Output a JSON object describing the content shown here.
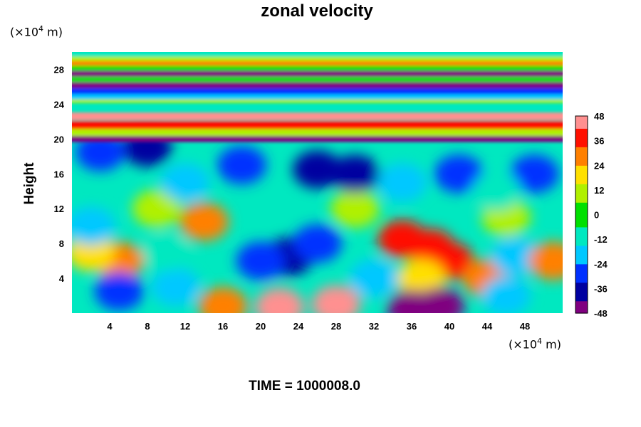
{
  "chart_data": {
    "type": "heatmap",
    "title": "zonal velocity",
    "ylabel": "Height",
    "x_unit_prefix": "(×10",
    "x_unit_exp": "4",
    "x_unit_suffix": " m)",
    "y_unit_prefix": "(×10",
    "y_unit_exp": "4",
    "y_unit_suffix": " m)",
    "footer": "TIME = 1000008.0",
    "xlim": [
      0,
      52
    ],
    "ylim": [
      0,
      30
    ],
    "x_ticks": [
      4,
      8,
      12,
      16,
      20,
      24,
      28,
      32,
      36,
      40,
      44,
      48
    ],
    "y_ticks": [
      4,
      8,
      12,
      16,
      20,
      24,
      28
    ],
    "colorbar": {
      "range": [
        -48,
        48
      ],
      "ticks": [
        48,
        36,
        24,
        12,
        0,
        -12,
        -24,
        -36,
        -48
      ]
    },
    "colormap": [
      "#800080",
      "#0000a0",
      "#0030ff",
      "#00c8ff",
      "#00e8c0",
      "#00e000",
      "#b0f000",
      "#ffe000",
      "#ff8000",
      "#ff1000",
      "#ff9090"
    ],
    "features": [
      {
        "x": 23,
        "y": 6.5,
        "value": -40
      },
      {
        "x": 20,
        "y": 6,
        "value": -30
      },
      {
        "x": 26,
        "y": 8,
        "value": -32
      },
      {
        "x": 38,
        "y": 7.5,
        "value": 42
      },
      {
        "x": 35,
        "y": 8.5,
        "value": 38
      },
      {
        "x": 40,
        "y": 6,
        "value": 36
      },
      {
        "x": 37,
        "y": 4,
        "value": 20
      },
      {
        "x": 36,
        "y": 0.5,
        "value": -48
      },
      {
        "x": 39,
        "y": 0.8,
        "value": -46
      },
      {
        "x": 22,
        "y": 0.7,
        "value": 46
      },
      {
        "x": 28,
        "y": 1.0,
        "value": 44
      },
      {
        "x": 16,
        "y": 0.8,
        "value": 30
      },
      {
        "x": 5,
        "y": 6,
        "value": 28
      },
      {
        "x": 2,
        "y": 7,
        "value": 22
      },
      {
        "x": 44,
        "y": 4,
        "value": 26
      },
      {
        "x": 47,
        "y": 6.5,
        "value": -22
      },
      {
        "x": 51,
        "y": 6,
        "value": 30
      },
      {
        "x": 14,
        "y": 10.5,
        "value": 26
      },
      {
        "x": 9,
        "y": 12,
        "value": 10
      },
      {
        "x": 30,
        "y": 12,
        "value": 6
      },
      {
        "x": 46,
        "y": 11,
        "value": 12
      },
      {
        "x": 5,
        "y": 2.5,
        "value": -30
      },
      {
        "x": 11,
        "y": 3,
        "value": -20
      },
      {
        "x": 46,
        "y": 2,
        "value": -22
      },
      {
        "x": 10,
        "y": 7,
        "value": -10
      },
      {
        "x": 2,
        "y": 10,
        "value": -20
      },
      {
        "x": 32,
        "y": 4,
        "value": -20
      },
      {
        "x": 18,
        "y": 17,
        "value": -32
      },
      {
        "x": 26,
        "y": 16.5,
        "value": -36
      },
      {
        "x": 30,
        "y": 16,
        "value": -38
      },
      {
        "x": 41,
        "y": 16,
        "value": -32
      },
      {
        "x": 49,
        "y": 16,
        "value": -30
      },
      {
        "x": 8,
        "y": 19,
        "value": -38
      },
      {
        "x": 3,
        "y": 18.5,
        "value": -30
      },
      {
        "x": 35,
        "y": 15,
        "value": -24
      },
      {
        "x": 45,
        "y": 14,
        "value": -14
      },
      {
        "x": 12,
        "y": 15,
        "value": -18
      }
    ],
    "bands": [
      {
        "y": 22.6,
        "value": 48
      },
      {
        "y": 21.6,
        "value": 42
      },
      {
        "y": 20.8,
        "value": 6
      },
      {
        "y": 20.1,
        "value": -46
      },
      {
        "y": 24.6,
        "value": 14
      },
      {
        "y": 25.0,
        "value": -20
      },
      {
        "y": 25.6,
        "value": -26
      },
      {
        "y": 26.3,
        "value": -48
      },
      {
        "y": 27.0,
        "value": 4
      },
      {
        "y": 27.6,
        "value": -44
      },
      {
        "y": 28.3,
        "value": 4
      },
      {
        "y": 28.9,
        "value": 26
      },
      {
        "y": 29.4,
        "value": 10
      },
      {
        "y": 29.9,
        "value": -6
      }
    ]
  }
}
